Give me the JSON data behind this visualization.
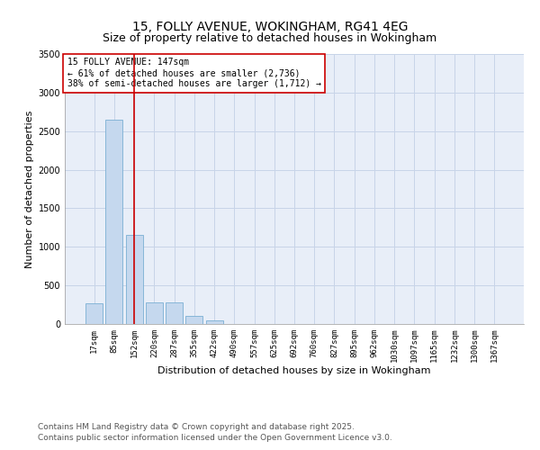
{
  "title_line1": "15, FOLLY AVENUE, WOKINGHAM, RG41 4EG",
  "title_line2": "Size of property relative to detached houses in Wokingham",
  "xlabel": "Distribution of detached houses by size in Wokingham",
  "ylabel": "Number of detached properties",
  "categories": [
    "17sqm",
    "85sqm",
    "152sqm",
    "220sqm",
    "287sqm",
    "355sqm",
    "422sqm",
    "490sqm",
    "557sqm",
    "625sqm",
    "692sqm",
    "760sqm",
    "827sqm",
    "895sqm",
    "962sqm",
    "1030sqm",
    "1097sqm",
    "1165sqm",
    "1232sqm",
    "1300sqm",
    "1367sqm"
  ],
  "values": [
    270,
    2650,
    1150,
    285,
    285,
    105,
    50,
    0,
    0,
    0,
    0,
    0,
    0,
    0,
    0,
    0,
    0,
    0,
    0,
    0,
    0
  ],
  "bar_color": "#c5d8ee",
  "bar_edge_color": "#7aafd4",
  "vline_x": 2,
  "vline_color": "#cc0000",
  "annotation_text": "15 FOLLY AVENUE: 147sqm\n← 61% of detached houses are smaller (2,736)\n38% of semi-detached houses are larger (1,712) →",
  "annotation_box_color": "#cc0000",
  "ylim": [
    0,
    3500
  ],
  "yticks": [
    0,
    500,
    1000,
    1500,
    2000,
    2500,
    3000,
    3500
  ],
  "grid_color": "#c8d4e8",
  "background_color": "#e8eef8",
  "footer_line1": "Contains HM Land Registry data © Crown copyright and database right 2025.",
  "footer_line2": "Contains public sector information licensed under the Open Government Licence v3.0.",
  "title_fontsize": 10,
  "subtitle_fontsize": 9,
  "annotation_fontsize": 7,
  "footer_fontsize": 6.5,
  "axis_label_fontsize": 8,
  "tick_fontsize": 6.5
}
